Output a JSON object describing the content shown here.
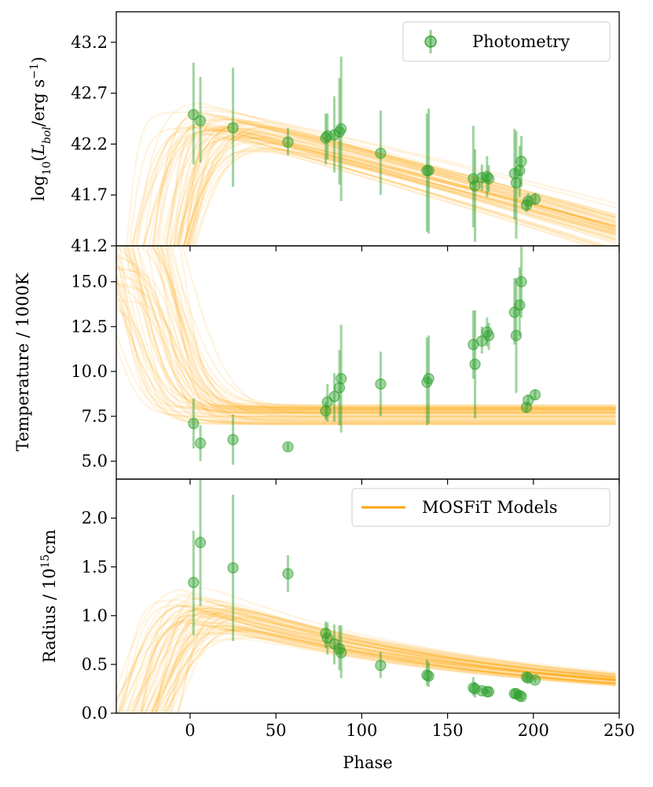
{
  "chart_data": {
    "type": "scatter",
    "shared_x": {
      "label": "Phase",
      "range": [
        -43,
        250
      ],
      "ticks": [
        0,
        50,
        100,
        150,
        200,
        250
      ],
      "tick_labels": [
        "0",
        "50",
        "100",
        "150",
        "200",
        "250"
      ]
    },
    "colors": {
      "photometry": "#2ca02c",
      "models": "#ffa500"
    },
    "legends": {
      "photometry": "Photometry",
      "models": "MOSFiT Models"
    },
    "panels": [
      {
        "id": "luminosity",
        "ylabel_pre": "log",
        "ylabel_sub": "10",
        "ylabel_mid": "(",
        "ylabel_L": "L",
        "ylabel_bol": "bol",
        "ylabel_slash": "/erg s",
        "ylabel_sup": "−1",
        "ylabel_post": ")",
        "ylim": [
          41.2,
          43.5
        ],
        "ticks": [
          41.2,
          41.7,
          42.2,
          42.7,
          43.2
        ],
        "tick_labels": [
          "41.2",
          "41.7",
          "42.2",
          "42.7",
          "43.2"
        ],
        "legend": "photometry",
        "points": [
          {
            "x": 2,
            "y": 42.49,
            "lo": 42.0,
            "hi": 43.0
          },
          {
            "x": 6,
            "y": 42.43,
            "lo": 42.02,
            "hi": 42.86
          },
          {
            "x": 25,
            "y": 42.36,
            "lo": 41.78,
            "hi": 42.95
          },
          {
            "x": 57,
            "y": 42.22,
            "lo": 42.09,
            "hi": 42.36
          },
          {
            "x": 79,
            "y": 42.26,
            "lo": 42.0,
            "hi": 42.5
          },
          {
            "x": 80,
            "y": 42.28,
            "lo": 42.05,
            "hi": 42.5
          },
          {
            "x": 84,
            "y": 42.29,
            "lo": 41.92,
            "hi": 42.67
          },
          {
            "x": 87,
            "y": 42.32,
            "lo": 41.8,
            "hi": 42.85
          },
          {
            "x": 88,
            "y": 42.35,
            "lo": 41.64,
            "hi": 43.06
          },
          {
            "x": 111,
            "y": 42.11,
            "lo": 41.7,
            "hi": 42.53
          },
          {
            "x": 138,
            "y": 41.94,
            "lo": 41.34,
            "hi": 42.5
          },
          {
            "x": 139,
            "y": 41.94,
            "lo": 41.32,
            "hi": 42.55
          },
          {
            "x": 165,
            "y": 41.86,
            "lo": 41.38,
            "hi": 42.38
          },
          {
            "x": 166,
            "y": 41.79,
            "lo": 41.24,
            "hi": 42.15
          },
          {
            "x": 170,
            "y": 41.87,
            "lo": 41.74,
            "hi": 42.0
          },
          {
            "x": 173,
            "y": 41.88,
            "lo": 41.68,
            "hi": 42.08
          },
          {
            "x": 174,
            "y": 41.86,
            "lo": 41.73,
            "hi": 41.99
          },
          {
            "x": 189,
            "y": 41.91,
            "lo": 41.46,
            "hi": 42.35
          },
          {
            "x": 190,
            "y": 41.82,
            "lo": 41.27,
            "hi": 42.33
          },
          {
            "x": 192,
            "y": 41.94,
            "lo": 41.68,
            "hi": 42.18
          },
          {
            "x": 193,
            "y": 42.03,
            "lo": 41.78,
            "hi": 42.28
          },
          {
            "x": 196,
            "y": 41.6,
            "lo": 41.53,
            "hi": 41.67
          },
          {
            "x": 197,
            "y": 41.64,
            "lo": 41.56,
            "hi": 41.72
          },
          {
            "x": 201,
            "y": 41.66,
            "lo": 41.6,
            "hi": 41.72
          }
        ]
      },
      {
        "id": "temperature",
        "ylabel": "Temperature / 1000K",
        "ylim": [
          4.0,
          17.0
        ],
        "ticks": [
          5.0,
          7.5,
          10.0,
          12.5,
          15.0
        ],
        "tick_labels": [
          "5.0",
          "7.5",
          "10.0",
          "12.5",
          "15.0"
        ],
        "legend": null,
        "points": [
          {
            "x": 2,
            "y": 7.1,
            "lo": 5.7,
            "hi": 8.5
          },
          {
            "x": 6,
            "y": 6.0,
            "lo": 5.0,
            "hi": 7.0
          },
          {
            "x": 25,
            "y": 6.2,
            "lo": 4.8,
            "hi": 7.6
          },
          {
            "x": 57,
            "y": 5.8,
            "lo": 5.6,
            "hi": 6.0
          },
          {
            "x": 79,
            "y": 7.8,
            "lo": 7.3,
            "hi": 8.3
          },
          {
            "x": 80,
            "y": 8.3,
            "lo": 7.2,
            "hi": 9.3
          },
          {
            "x": 84,
            "y": 8.6,
            "lo": 7.2,
            "hi": 9.9
          },
          {
            "x": 87,
            "y": 9.1,
            "lo": 7.0,
            "hi": 11.2
          },
          {
            "x": 88,
            "y": 9.6,
            "lo": 6.6,
            "hi": 12.6
          },
          {
            "x": 111,
            "y": 9.3,
            "lo": 7.5,
            "hi": 11.1
          },
          {
            "x": 138,
            "y": 9.4,
            "lo": 7.0,
            "hi": 11.9
          },
          {
            "x": 139,
            "y": 9.6,
            "lo": 7.1,
            "hi": 12.0
          },
          {
            "x": 165,
            "y": 11.5,
            "lo": 9.6,
            "hi": 13.4
          },
          {
            "x": 166,
            "y": 10.4,
            "lo": 7.4,
            "hi": 13.4
          },
          {
            "x": 170,
            "y": 11.7,
            "lo": 11.0,
            "hi": 12.5
          },
          {
            "x": 173,
            "y": 12.2,
            "lo": 11.4,
            "hi": 13.0
          },
          {
            "x": 174,
            "y": 12.0,
            "lo": 11.2,
            "hi": 12.7
          },
          {
            "x": 189,
            "y": 13.3,
            "lo": 11.5,
            "hi": 15.2
          },
          {
            "x": 190,
            "y": 12.0,
            "lo": 8.8,
            "hi": 15.2
          },
          {
            "x": 192,
            "y": 13.7,
            "lo": 12.0,
            "hi": 15.8
          },
          {
            "x": 193,
            "y": 15.0,
            "lo": 13.0,
            "hi": 17.0
          },
          {
            "x": 196,
            "y": 8.0,
            "lo": 7.7,
            "hi": 8.3
          },
          {
            "x": 197,
            "y": 8.4,
            "lo": 8.1,
            "hi": 8.7
          },
          {
            "x": 201,
            "y": 8.7,
            "lo": 8.4,
            "hi": 9.0
          }
        ]
      },
      {
        "id": "radius",
        "ylabel_pre": "Radius / 10",
        "ylabel_sup": "15",
        "ylabel_post": "cm",
        "ylim": [
          0.0,
          2.4
        ],
        "ticks": [
          0.0,
          0.5,
          1.0,
          1.5,
          2.0
        ],
        "tick_labels": [
          "0.0",
          "0.5",
          "1.0",
          "1.5",
          "2.0"
        ],
        "legend": "models",
        "points": [
          {
            "x": 2,
            "y": 1.34,
            "lo": 0.8,
            "hi": 1.87
          },
          {
            "x": 6,
            "y": 1.75,
            "lo": 1.1,
            "hi": 2.4
          },
          {
            "x": 25,
            "y": 1.49,
            "lo": 0.74,
            "hi": 2.24
          },
          {
            "x": 57,
            "y": 1.43,
            "lo": 1.24,
            "hi": 1.62
          },
          {
            "x": 79,
            "y": 0.82,
            "lo": 0.67,
            "hi": 0.94
          },
          {
            "x": 80,
            "y": 0.77,
            "lo": 0.6,
            "hi": 0.93
          },
          {
            "x": 84,
            "y": 0.71,
            "lo": 0.5,
            "hi": 0.91
          },
          {
            "x": 87,
            "y": 0.66,
            "lo": 0.44,
            "hi": 0.9
          },
          {
            "x": 88,
            "y": 0.62,
            "lo": 0.36,
            "hi": 0.9
          },
          {
            "x": 111,
            "y": 0.49,
            "lo": 0.36,
            "hi": 0.63
          },
          {
            "x": 138,
            "y": 0.39,
            "lo": 0.28,
            "hi": 0.55
          },
          {
            "x": 139,
            "y": 0.38,
            "lo": 0.27,
            "hi": 0.52
          },
          {
            "x": 165,
            "y": 0.26,
            "lo": 0.18,
            "hi": 0.37
          },
          {
            "x": 166,
            "y": 0.25,
            "lo": 0.16,
            "hi": 0.32
          },
          {
            "x": 170,
            "y": 0.23,
            "lo": 0.21,
            "hi": 0.26
          },
          {
            "x": 173,
            "y": 0.22,
            "lo": 0.2,
            "hi": 0.25
          },
          {
            "x": 174,
            "y": 0.22,
            "lo": 0.2,
            "hi": 0.24
          },
          {
            "x": 189,
            "y": 0.2,
            "lo": 0.15,
            "hi": 0.24
          },
          {
            "x": 190,
            "y": 0.2,
            "lo": 0.15,
            "hi": 0.24
          },
          {
            "x": 192,
            "y": 0.18,
            "lo": 0.15,
            "hi": 0.22
          },
          {
            "x": 193,
            "y": 0.17,
            "lo": 0.14,
            "hi": 0.2
          },
          {
            "x": 196,
            "y": 0.37,
            "lo": 0.33,
            "hi": 0.41
          },
          {
            "x": 197,
            "y": 0.36,
            "lo": 0.32,
            "hi": 0.4
          },
          {
            "x": 201,
            "y": 0.34,
            "lo": 0.31,
            "hi": 0.37
          }
        ]
      }
    ]
  }
}
